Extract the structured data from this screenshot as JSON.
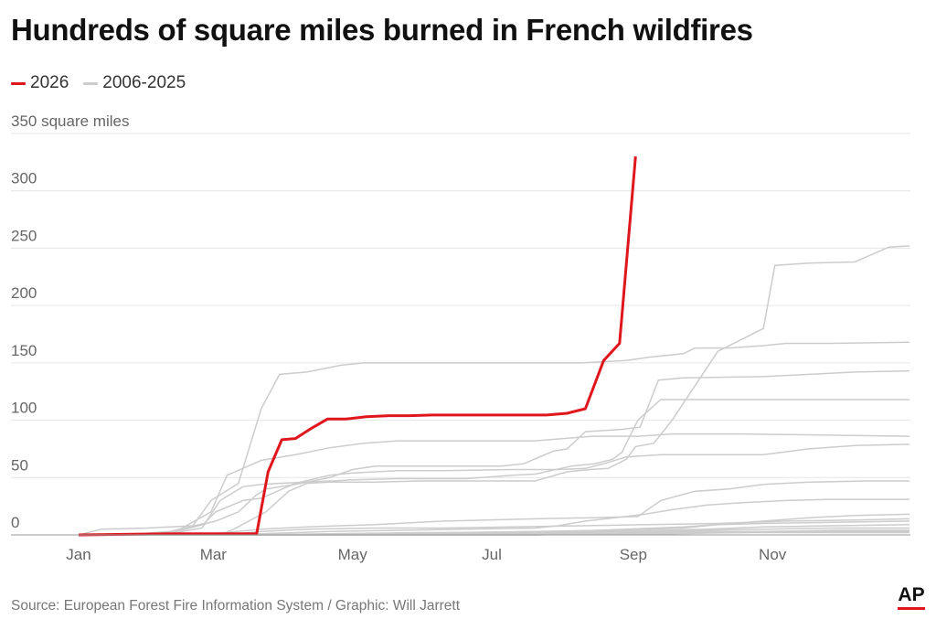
{
  "chart_data": {
    "type": "line",
    "title": "Hundreds of square miles burned in French wildfires",
    "xlabel": "",
    "ylabel": "",
    "y_unit_label": "350 square miles",
    "ylim": [
      0,
      350
    ],
    "y_ticks": [
      0,
      50,
      100,
      150,
      200,
      250,
      300
    ],
    "y_tick_labels": [
      "0",
      "50",
      "100",
      "150",
      "200",
      "250",
      "300"
    ],
    "xlim": [
      0,
      364
    ],
    "x_ticks": [
      {
        "label": "Jan",
        "day": 0
      },
      {
        "label": "Mar",
        "day": 59
      },
      {
        "label": "May",
        "day": 120
      },
      {
        "label": "Jul",
        "day": 181
      },
      {
        "label": "Sep",
        "day": 243
      },
      {
        "label": "Nov",
        "day": 304
      }
    ],
    "grid": true,
    "legend": {
      "placement": "top-left",
      "entries": [
        {
          "label": "2026",
          "color": "#e0161d"
        },
        {
          "label": "2006-2025",
          "color": "#cccccc"
        }
      ]
    },
    "highlight_series": {
      "name": "2026",
      "color": "#e0161d",
      "points": [
        [
          0,
          0
        ],
        [
          20,
          0.5
        ],
        [
          40,
          1
        ],
        [
          60,
          1
        ],
        [
          78,
          1
        ],
        [
          83,
          55
        ],
        [
          89,
          83
        ],
        [
          95,
          84
        ],
        [
          102,
          93
        ],
        [
          109,
          101
        ],
        [
          117,
          101
        ],
        [
          126,
          103
        ],
        [
          136,
          104
        ],
        [
          145,
          104
        ],
        [
          155,
          104.5
        ],
        [
          170,
          104.5
        ],
        [
          190,
          104.5
        ],
        [
          205,
          104.5
        ],
        [
          214,
          106
        ],
        [
          222,
          110
        ],
        [
          230,
          152
        ],
        [
          237,
          167
        ],
        [
          244,
          330
        ]
      ]
    },
    "background_series": {
      "name": "2006-2025",
      "color": "#cccccc",
      "series": [
        {
          "points": [
            [
              0,
              0
            ],
            [
              62,
              0
            ],
            [
              68,
              5
            ],
            [
              82,
              20
            ],
            [
              92,
              38
            ],
            [
              100,
              45
            ],
            [
              110,
              46
            ],
            [
              130,
              46
            ],
            [
              150,
              47
            ],
            [
              200,
              47
            ],
            [
              214,
              55
            ],
            [
              224,
              57
            ],
            [
              232,
              58
            ],
            [
              240,
              66
            ],
            [
              244,
              77
            ],
            [
              252,
              80
            ],
            [
              260,
              100
            ],
            [
              270,
              130
            ],
            [
              280,
              160
            ],
            [
              290,
              170
            ],
            [
              300,
              180
            ],
            [
              305,
              235
            ],
            [
              320,
              237
            ],
            [
              340,
              238
            ],
            [
              355,
              251
            ],
            [
              370,
              252
            ],
            [
              400,
              253
            ],
            [
              420,
              253
            ],
            [
              440,
              254
            ],
            [
              460,
              254
            ],
            [
              500,
              255
            ]
          ]
        }
      ]
    },
    "background_lines": [
      {
        "points": [
          [
            0,
            0
          ],
          [
            10,
            5
          ],
          [
            30,
            6
          ],
          [
            50,
            8
          ],
          [
            58,
            30
          ],
          [
            70,
            45
          ],
          [
            80,
            110
          ],
          [
            88,
            140
          ],
          [
            100,
            142
          ],
          [
            115,
            148
          ],
          [
            125,
            150
          ],
          [
            140,
            150
          ],
          [
            170,
            150
          ],
          [
            200,
            150
          ],
          [
            220,
            150
          ],
          [
            240,
            152
          ],
          [
            250,
            155
          ],
          [
            265,
            158
          ],
          [
            270,
            163
          ],
          [
            285,
            163
          ],
          [
            300,
            165
          ],
          [
            310,
            167
          ],
          [
            330,
            167
          ],
          [
            364,
            168
          ]
        ]
      },
      {
        "points": [
          [
            0,
            0
          ],
          [
            40,
            0
          ],
          [
            58,
            20
          ],
          [
            65,
            52
          ],
          [
            80,
            65
          ],
          [
            95,
            70
          ],
          [
            110,
            76
          ],
          [
            125,
            80
          ],
          [
            140,
            82
          ],
          [
            170,
            82
          ],
          [
            200,
            82
          ],
          [
            225,
            86
          ],
          [
            245,
            86
          ],
          [
            260,
            88
          ],
          [
            275,
            88
          ],
          [
            290,
            88
          ],
          [
            364,
            86
          ]
        ]
      },
      {
        "points": [
          [
            0,
            0
          ],
          [
            40,
            1
          ],
          [
            54,
            6
          ],
          [
            62,
            30
          ],
          [
            72,
            42
          ],
          [
            80,
            44
          ],
          [
            88,
            45
          ],
          [
            100,
            46
          ],
          [
            120,
            48
          ],
          [
            140,
            49
          ],
          [
            170,
            49
          ],
          [
            190,
            52
          ],
          [
            200,
            53
          ],
          [
            216,
            60
          ],
          [
            226,
            62
          ],
          [
            234,
            66
          ],
          [
            238,
            72
          ],
          [
            245,
            100
          ],
          [
            255,
            118
          ],
          [
            270,
            118
          ],
          [
            290,
            118
          ],
          [
            364,
            118
          ]
        ]
      },
      {
        "points": [
          [
            0,
            0
          ],
          [
            30,
            0
          ],
          [
            45,
            4
          ],
          [
            60,
            12
          ],
          [
            70,
            20
          ],
          [
            78,
            35
          ],
          [
            82,
            40
          ],
          [
            95,
            44
          ],
          [
            110,
            50
          ],
          [
            120,
            57
          ],
          [
            130,
            60
          ],
          [
            150,
            60
          ],
          [
            170,
            60
          ],
          [
            185,
            60
          ],
          [
            195,
            62
          ],
          [
            208,
            73
          ],
          [
            214,
            75
          ],
          [
            222,
            90
          ],
          [
            238,
            92
          ],
          [
            246,
            94
          ],
          [
            254,
            135
          ],
          [
            265,
            137
          ],
          [
            300,
            138
          ],
          [
            320,
            140
          ],
          [
            340,
            142
          ],
          [
            364,
            143
          ]
        ]
      },
      {
        "points": [
          [
            0,
            0
          ],
          [
            20,
            0
          ],
          [
            40,
            3
          ],
          [
            55,
            10
          ],
          [
            60,
            20
          ],
          [
            72,
            30
          ],
          [
            80,
            32
          ],
          [
            95,
            45
          ],
          [
            110,
            52
          ],
          [
            120,
            54
          ],
          [
            140,
            56
          ],
          [
            160,
            56
          ],
          [
            190,
            57
          ],
          [
            210,
            57
          ],
          [
            222,
            58
          ],
          [
            230,
            62
          ],
          [
            240,
            68
          ],
          [
            255,
            70
          ],
          [
            275,
            70
          ],
          [
            300,
            70
          ],
          [
            320,
            75
          ],
          [
            340,
            78
          ],
          [
            364,
            79
          ]
        ]
      },
      {
        "points": [
          [
            0,
            0
          ],
          [
            50,
            0
          ],
          [
            64,
            2
          ],
          [
            80,
            5
          ],
          [
            100,
            7
          ],
          [
            130,
            9
          ],
          [
            160,
            12
          ],
          [
            200,
            14
          ],
          [
            225,
            15
          ],
          [
            245,
            16
          ],
          [
            255,
            30
          ],
          [
            270,
            38
          ],
          [
            285,
            40
          ],
          [
            300,
            44
          ],
          [
            320,
            46
          ],
          [
            345,
            47
          ],
          [
            364,
            47
          ]
        ]
      },
      {
        "points": [
          [
            0,
            0
          ],
          [
            60,
            0
          ],
          [
            80,
            1
          ],
          [
            110,
            3
          ],
          [
            140,
            4
          ],
          [
            170,
            5
          ],
          [
            200,
            6
          ],
          [
            210,
            8
          ],
          [
            222,
            12
          ],
          [
            235,
            15
          ],
          [
            248,
            18
          ],
          [
            260,
            22
          ],
          [
            275,
            26
          ],
          [
            290,
            28
          ],
          [
            310,
            30
          ],
          [
            330,
            31
          ],
          [
            364,
            31
          ]
        ]
      },
      {
        "points": [
          [
            0,
            0
          ],
          [
            80,
            0
          ],
          [
            120,
            1
          ],
          [
            160,
            2
          ],
          [
            200,
            3
          ],
          [
            230,
            4
          ],
          [
            250,
            5
          ],
          [
            265,
            6
          ],
          [
            280,
            9
          ],
          [
            300,
            12
          ],
          [
            320,
            15
          ],
          [
            340,
            17
          ],
          [
            364,
            18
          ]
        ]
      },
      {
        "points": [
          [
            0,
            0
          ],
          [
            70,
            0
          ],
          [
            110,
            1
          ],
          [
            150,
            2
          ],
          [
            190,
            2
          ],
          [
            215,
            3
          ],
          [
            240,
            5
          ],
          [
            265,
            7
          ],
          [
            280,
            9
          ],
          [
            300,
            10
          ],
          [
            330,
            11
          ],
          [
            364,
            12
          ]
        ]
      },
      {
        "points": [
          [
            0,
            0
          ],
          [
            100,
            0
          ],
          [
            150,
            1
          ],
          [
            200,
            2
          ],
          [
            230,
            3
          ],
          [
            255,
            4
          ],
          [
            275,
            5
          ],
          [
            300,
            7
          ],
          [
            330,
            8
          ],
          [
            364,
            9
          ]
        ]
      },
      {
        "points": [
          [
            0,
            0
          ],
          [
            90,
            0
          ],
          [
            140,
            1
          ],
          [
            180,
            1
          ],
          [
            220,
            2
          ],
          [
            250,
            3
          ],
          [
            270,
            4
          ],
          [
            300,
            5
          ],
          [
            330,
            6
          ],
          [
            364,
            6
          ]
        ]
      },
      {
        "points": [
          [
            0,
            0
          ],
          [
            120,
            0
          ],
          [
            170,
            1
          ],
          [
            210,
            1
          ],
          [
            240,
            2
          ],
          [
            270,
            3
          ],
          [
            300,
            3
          ],
          [
            330,
            4
          ],
          [
            364,
            4
          ]
        ]
      },
      {
        "points": [
          [
            0,
            0
          ],
          [
            150,
            0
          ],
          [
            200,
            0
          ],
          [
            230,
            1
          ],
          [
            260,
            2
          ],
          [
            290,
            2
          ],
          [
            320,
            3
          ],
          [
            364,
            3
          ]
        ]
      },
      {
        "points": [
          [
            0,
            0
          ],
          [
            64,
            0
          ],
          [
            80,
            3
          ],
          [
            100,
            5
          ],
          [
            130,
            6
          ],
          [
            160,
            6
          ],
          [
            190,
            7
          ],
          [
            220,
            8
          ],
          [
            250,
            9
          ],
          [
            280,
            10
          ],
          [
            310,
            12
          ],
          [
            340,
            13
          ],
          [
            364,
            14
          ]
        ]
      },
      {
        "points": [
          [
            0,
            0
          ],
          [
            200,
            0
          ],
          [
            230,
            1
          ],
          [
            260,
            1
          ],
          [
            290,
            2
          ],
          [
            320,
            2
          ],
          [
            364,
            2
          ]
        ]
      }
    ]
  },
  "footer": {
    "source": "Source: European Forest Fire Information System / Graphic: Will Jarrett",
    "logo": "AP"
  }
}
